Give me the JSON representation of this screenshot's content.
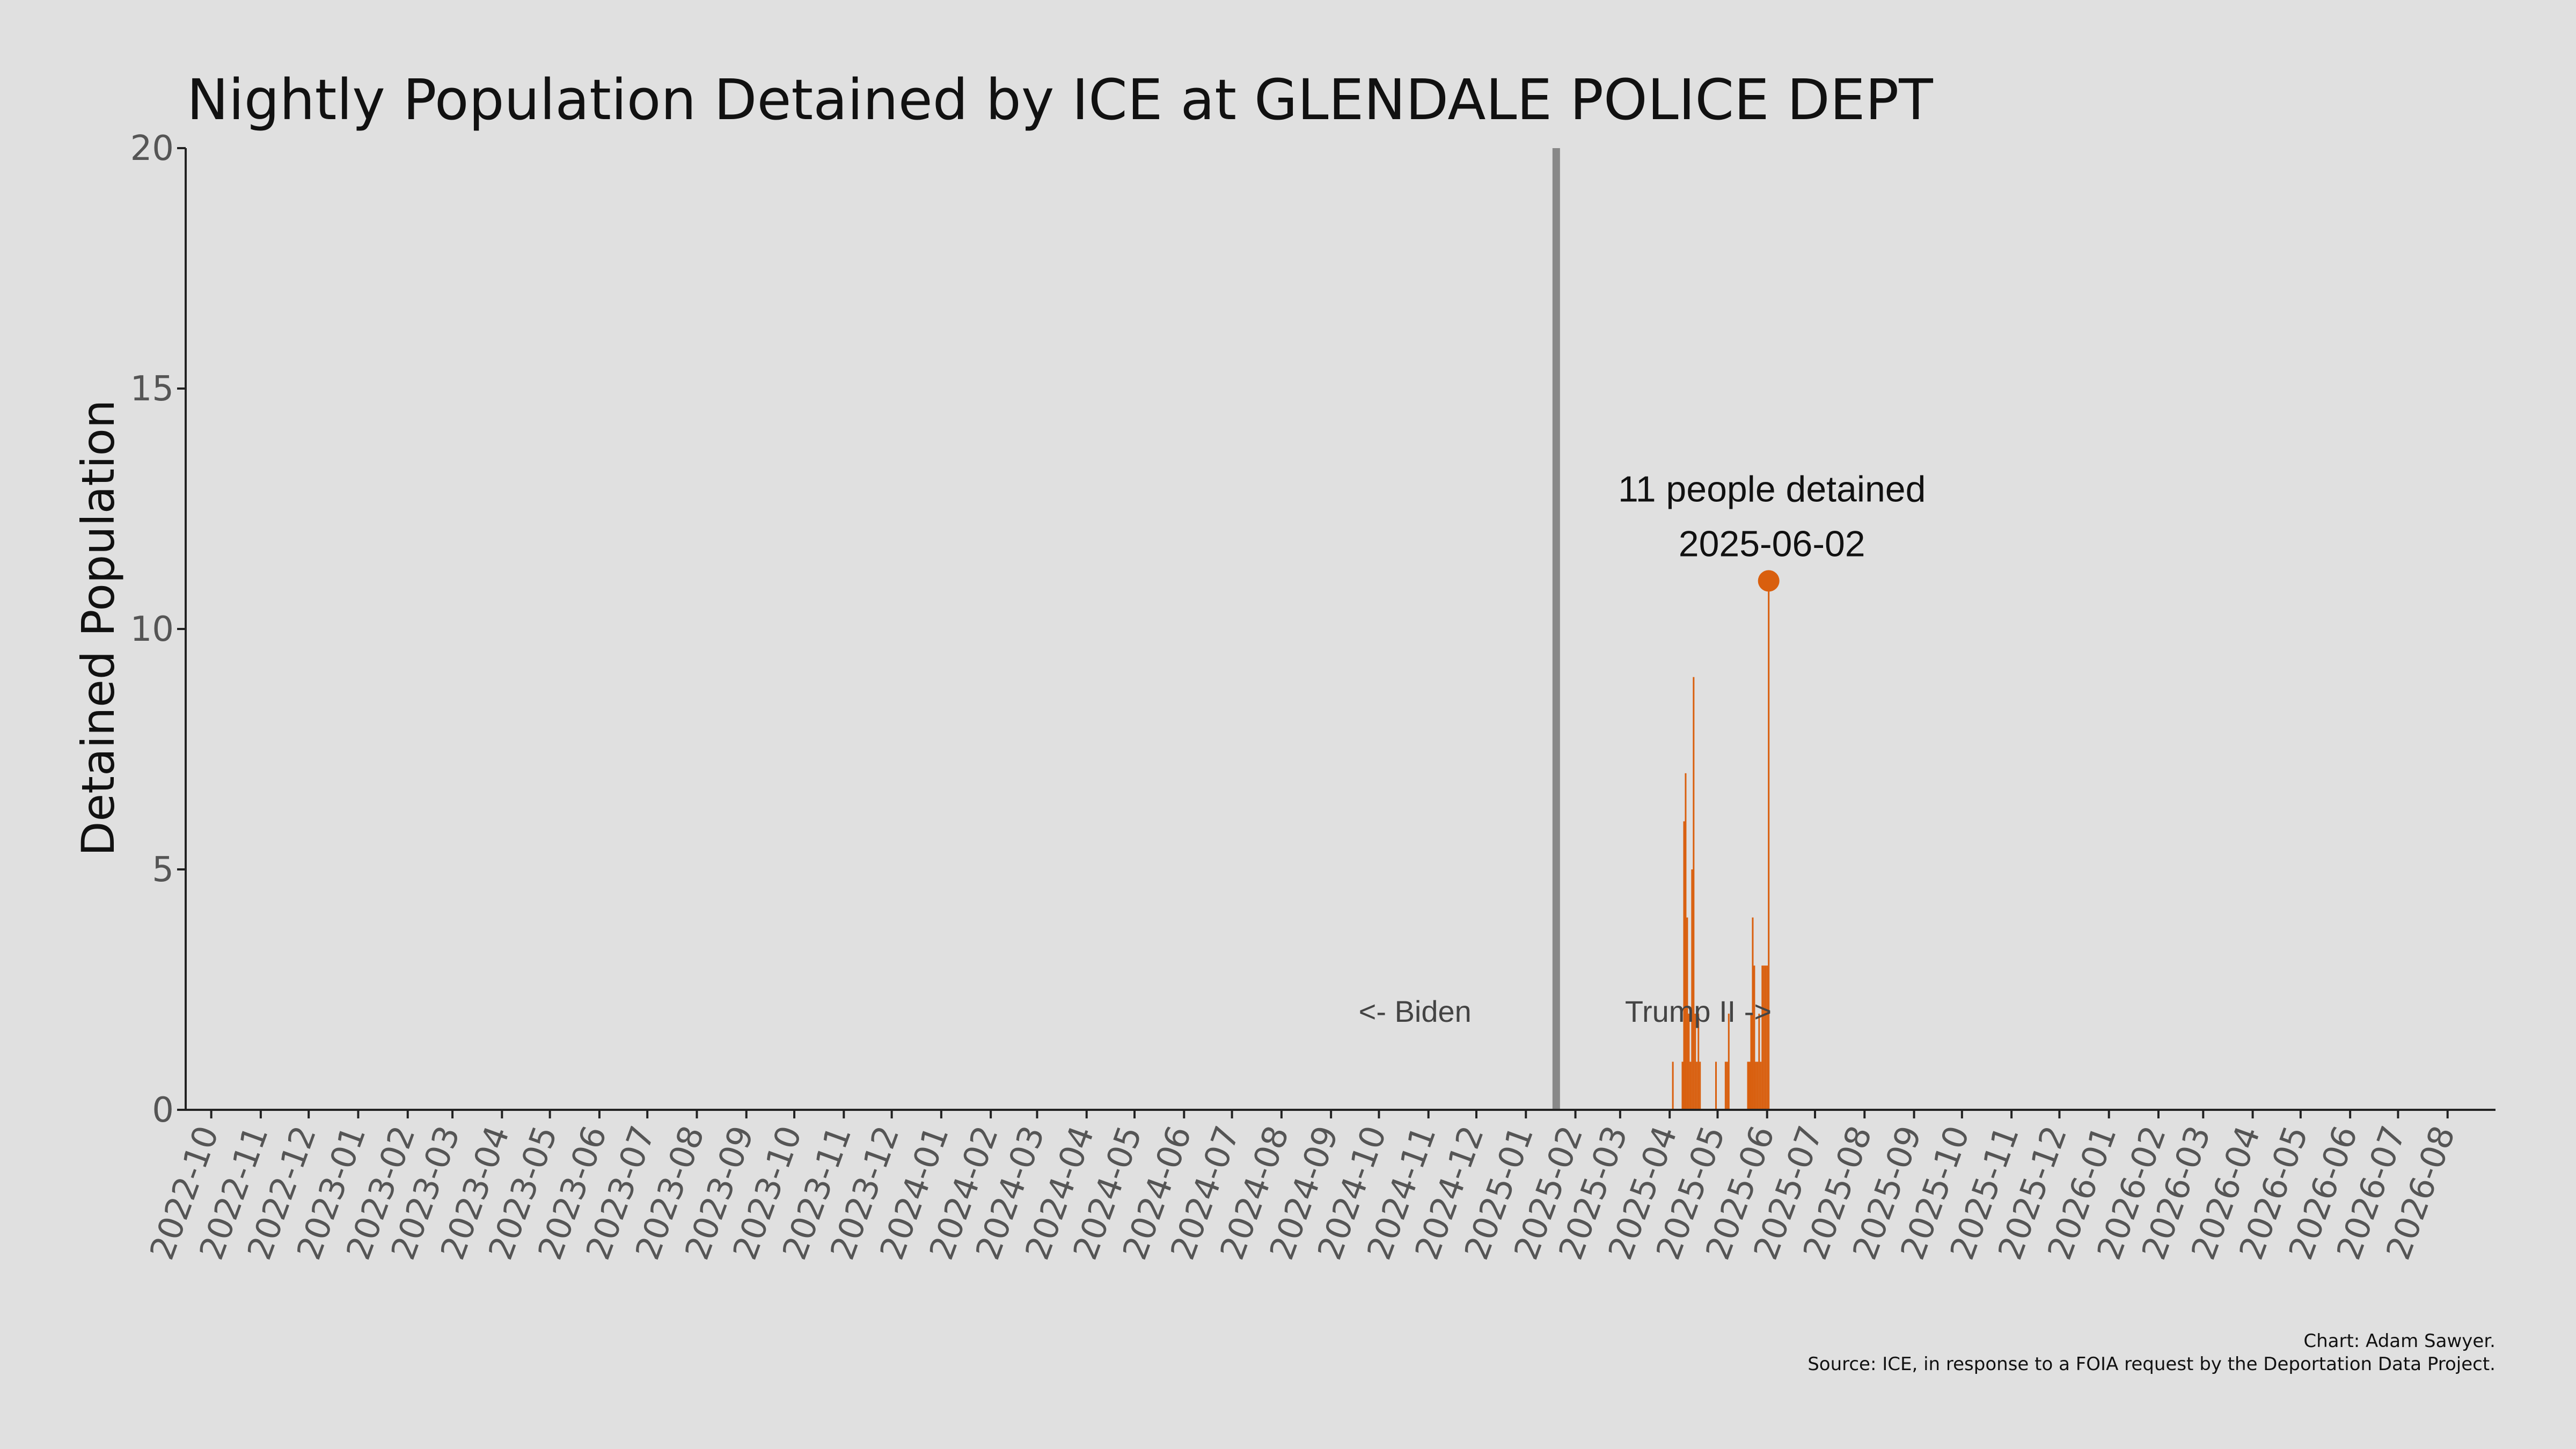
{
  "chart_data": {
    "type": "bar",
    "title": "Nightly Population Detained by ICE at GLENDALE POLICE DEPT",
    "ylabel": "Detained Population",
    "xlabel": "",
    "xlim": [
      "2022-09-15",
      "2026-08-31"
    ],
    "ylim": [
      0,
      20
    ],
    "yticks": [
      0,
      5,
      10,
      15,
      20
    ],
    "xtick_labels": [
      "2022-10",
      "2022-11",
      "2022-12",
      "2023-01",
      "2023-02",
      "2023-03",
      "2023-04",
      "2023-05",
      "2023-06",
      "2023-07",
      "2023-08",
      "2023-09",
      "2023-10",
      "2023-11",
      "2023-12",
      "2024-01",
      "2024-02",
      "2024-03",
      "2024-04",
      "2024-05",
      "2024-06",
      "2024-07",
      "2024-08",
      "2024-09",
      "2024-10",
      "2024-11",
      "2024-12",
      "2025-01",
      "2025-02",
      "2025-03",
      "2025-04",
      "2025-05",
      "2025-06",
      "2025-07",
      "2025-08",
      "2025-09",
      "2025-10",
      "2025-11",
      "2025-12",
      "2026-01",
      "2026-02",
      "2026-03",
      "2026-04",
      "2026-05",
      "2026-06",
      "2026-07",
      "2026-08"
    ],
    "grid": false,
    "bar_color": "#d95f0e",
    "divider": {
      "date": "2025-01-20",
      "color": "#888888"
    },
    "era_labels": {
      "left": "<- Biden",
      "right": "Trump II ->"
    },
    "series": [
      {
        "x": [
          "2025-04-03",
          "2025-04-09",
          "2025-04-10",
          "2025-04-11",
          "2025-04-12",
          "2025-04-13",
          "2025-04-14",
          "2025-04-15",
          "2025-04-16",
          "2025-04-17",
          "2025-04-18",
          "2025-04-19",
          "2025-04-20",
          "2025-04-30",
          "2025-05-06",
          "2025-05-07",
          "2025-05-08",
          "2025-05-20",
          "2025-05-21",
          "2025-05-22",
          "2025-05-23",
          "2025-05-24",
          "2025-05-25",
          "2025-05-26",
          "2025-05-27",
          "2025-05-28",
          "2025-05-29",
          "2025-05-30",
          "2025-05-31",
          "2025-06-01",
          "2025-06-02"
        ],
        "values": [
          1,
          1,
          6,
          7,
          4,
          2,
          1,
          5,
          9,
          2,
          1,
          2,
          1,
          1,
          1,
          1,
          2,
          1,
          1,
          2,
          4,
          3,
          1,
          1,
          2,
          1,
          3,
          3,
          3,
          3,
          11
        ]
      }
    ],
    "highlight": {
      "date": "2025-06-02",
      "value": 11,
      "label_line1": "11 people detained",
      "label_line2": "2025-06-02"
    },
    "credits": [
      "Chart: Adam Sawyer.",
      "Source: ICE, in response to a FOIA request by the Deportation Data Project."
    ]
  }
}
